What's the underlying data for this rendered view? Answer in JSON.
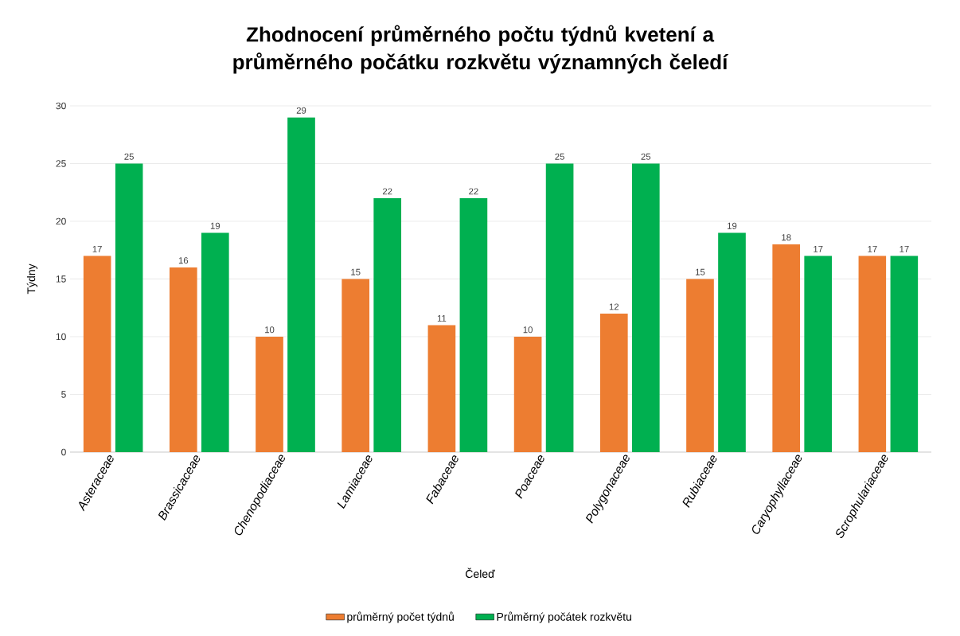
{
  "chart_data": {
    "type": "bar",
    "title": "Zhodnocení průměrného počtu týdnů kvetení a průměrného počátku rozkvětu významných čeledí",
    "xlabel": "Čeleď",
    "ylabel": "Týdny",
    "categories": [
      "Asteraceae",
      "Brassicaceae",
      "Chenopodiaceae",
      "Lamiaceae",
      "Fabaceae",
      "Poaceae",
      "Polygonaceae",
      "Rubiaceae",
      "Caryophyllaceae",
      "Scrophulariaceae"
    ],
    "series": [
      {
        "name": "průměrný počet týdnů",
        "color": "#ed7d31",
        "values": [
          17,
          16,
          10,
          15,
          11,
          10,
          12,
          15,
          18,
          17
        ]
      },
      {
        "name": "Průměrný počátek rozkvětu",
        "color": "#00b050",
        "values": [
          25,
          19,
          29,
          22,
          22,
          25,
          25,
          19,
          17,
          17
        ]
      }
    ],
    "ylim": [
      0,
      30
    ],
    "yticks": [
      0,
      5,
      10,
      15,
      20,
      25,
      30
    ],
    "grid": "y",
    "legend": "bottom",
    "data_labels": true
  }
}
